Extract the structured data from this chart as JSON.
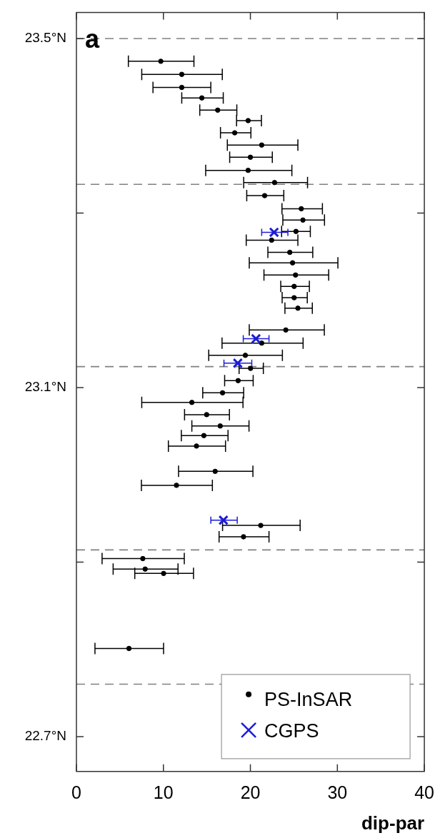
{
  "chart_data": {
    "type": "scatter",
    "xlabel": "dip-par",
    "annotations": [
      "a"
    ],
    "legend": "bottom right",
    "xlim": [
      0,
      40
    ],
    "xticks": [
      0,
      10,
      20,
      30,
      40
    ],
    "ylim": [
      22.66,
      23.53
    ],
    "yticks": [
      {
        "value": 22.7,
        "label": "22.7°N"
      },
      {
        "value": 22.9,
        "label": null
      },
      {
        "value": 23.1,
        "label": "23.1°N"
      },
      {
        "value": 23.3,
        "label": null
      },
      {
        "value": 23.5,
        "label": "23.5°N"
      }
    ],
    "ref_lines": [
      {
        "axis": "y",
        "value": 23.5,
        "color": "#808080",
        "line_style": "dashed"
      },
      {
        "axis": "y",
        "value": 23.333,
        "color": "#808080",
        "line_style": "dashed"
      },
      {
        "axis": "y",
        "value": 23.124,
        "color": "#808080",
        "line_style": "dashed"
      },
      {
        "axis": "y",
        "value": 22.914,
        "color": "#808080",
        "line_style": "dashed"
      },
      {
        "axis": "y",
        "value": 22.76,
        "color": "#808080",
        "line_style": "dashed"
      }
    ],
    "series": [
      {
        "name": "PS-InSAR",
        "color": "#000000",
        "marker": "circle",
        "x": [
          9.7,
          12.11,
          12.11,
          14.42,
          16.24,
          19.74,
          18.2,
          21.3,
          20.0,
          19.74,
          22.78,
          21.64,
          25.85,
          26.04,
          25.24,
          22.44,
          24.53,
          24.85,
          25.19,
          25.03,
          25.03,
          25.46,
          24.07,
          21.3,
          19.42,
          20.02,
          18.59,
          16.8,
          13.27,
          14.97,
          16.53,
          14.65,
          13.8,
          15.95,
          11.5,
          21.19,
          19.21,
          7.63,
          7.9,
          10.02,
          6.04
        ],
        "values": [
          23.474,
          23.459,
          23.444,
          23.432,
          23.418,
          23.406,
          23.392,
          23.378,
          23.364,
          23.349,
          23.335,
          23.32,
          23.305,
          23.292,
          23.279,
          23.269,
          23.255,
          23.243,
          23.229,
          23.216,
          23.203,
          23.191,
          23.166,
          23.151,
          23.137,
          23.122,
          23.108,
          23.094,
          23.083,
          23.069,
          23.056,
          23.045,
          23.033,
          23.004,
          22.988,
          22.942,
          22.929,
          22.904,
          22.892,
          22.887,
          22.801
        ],
        "xerrors": [
          [
            5.97,
            13.51
          ],
          [
            7.51,
            16.77
          ],
          [
            8.8,
            15.45
          ],
          [
            12.11,
            16.88
          ],
          [
            14.18,
            18.44
          ],
          [
            18.41,
            21.27
          ],
          [
            16.56,
            20.06
          ],
          [
            17.35,
            25.46
          ],
          [
            17.62,
            22.52
          ],
          [
            14.86,
            24.77
          ],
          [
            19.23,
            26.57
          ],
          [
            19.58,
            23.84
          ],
          [
            23.63,
            28.28
          ],
          [
            23.73,
            28.52
          ],
          [
            23.59,
            26.89
          ],
          [
            19.52,
            25.46
          ],
          [
            22.01,
            27.17
          ],
          [
            19.87,
            30.06
          ],
          [
            21.56,
            29.0
          ],
          [
            23.49,
            26.78
          ],
          [
            23.65,
            26.54
          ],
          [
            23.97,
            27.12
          ],
          [
            19.87,
            28.5
          ],
          [
            16.74,
            26.06
          ],
          [
            15.21,
            23.68
          ],
          [
            18.7,
            21.49
          ],
          [
            17.04,
            20.32
          ],
          [
            14.52,
            19.23
          ],
          [
            7.51,
            19.15
          ],
          [
            12.43,
            17.59
          ],
          [
            13.27,
            19.84
          ],
          [
            12.06,
            17.43
          ],
          [
            10.57,
            17.14
          ],
          [
            11.74,
            20.29
          ],
          [
            7.47,
            15.63
          ],
          [
            16.8,
            25.72
          ],
          [
            16.4,
            22.14
          ],
          [
            2.95,
            12.4
          ],
          [
            4.22,
            11.68
          ],
          [
            6.71,
            13.46
          ],
          [
            2.13,
            10.02
          ]
        ]
      },
      {
        "name": "CGPS",
        "color": "#1c1cd6",
        "marker": "cross",
        "x": [
          22.72,
          20.64,
          18.55,
          16.9
        ],
        "values": [
          23.278,
          23.156,
          23.128,
          22.948
        ],
        "xerrors": [
          [
            21.3,
            24.31
          ],
          [
            19.18,
            22.14
          ],
          [
            16.96,
            20.16
          ],
          [
            15.45,
            18.49
          ]
        ]
      }
    ]
  }
}
